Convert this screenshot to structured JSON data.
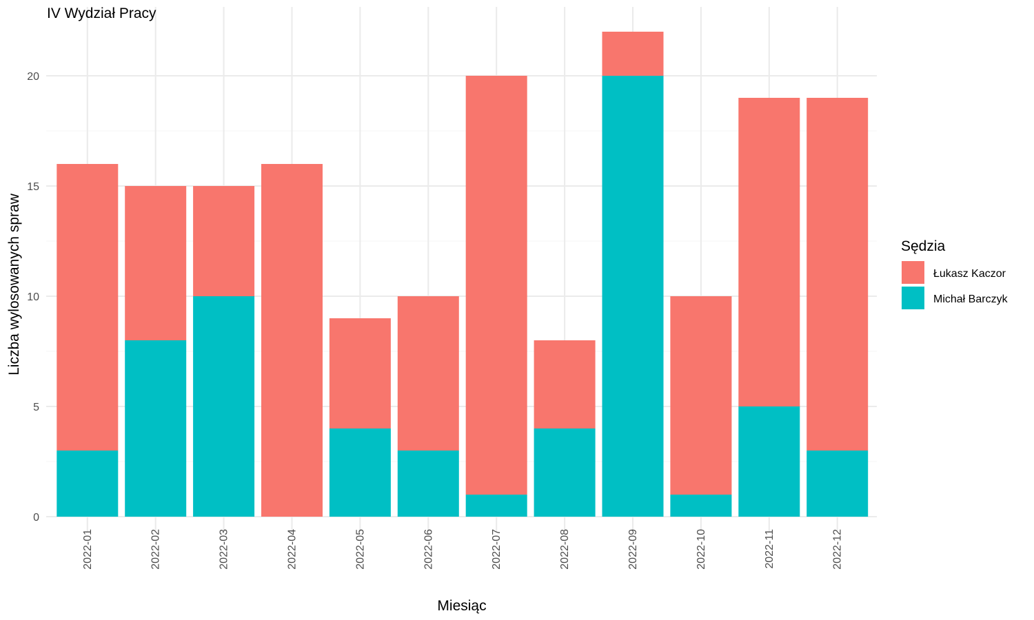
{
  "chart_data": {
    "type": "bar",
    "stacked": true,
    "title": "IV Wydział Pracy",
    "xlabel": "Miesiąc",
    "ylabel": "Liczba wylosowanych spraw",
    "categories": [
      "2022-01",
      "2022-02",
      "2022-03",
      "2022-04",
      "2022-05",
      "2022-06",
      "2022-07",
      "2022-08",
      "2022-09",
      "2022-10",
      "2022-11",
      "2022-12"
    ],
    "series": [
      {
        "name": "Michał Barczyk",
        "color": "#00bfc4",
        "values": [
          3,
          8,
          10,
          0,
          4,
          3,
          1,
          4,
          20,
          1,
          5,
          3
        ]
      },
      {
        "name": "Łukasz Kaczor",
        "color": "#f8766d",
        "values": [
          13,
          7,
          5,
          16,
          5,
          7,
          19,
          4,
          2,
          9,
          14,
          16
        ]
      }
    ],
    "ylim": [
      0,
      22
    ],
    "yticks": [
      0,
      5,
      10,
      15,
      20
    ],
    "grid": true,
    "legend": {
      "title": "Sędzia",
      "placement": "right",
      "order": [
        "Łukasz Kaczor",
        "Michał Barczyk"
      ]
    }
  }
}
